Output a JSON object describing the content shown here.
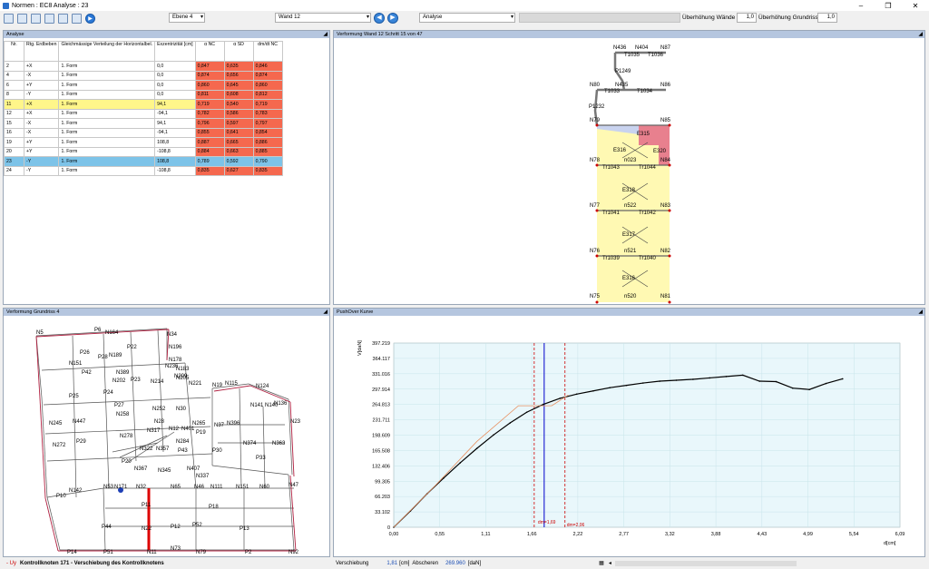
{
  "window": {
    "title": "Normen : EC8  Analyse : 23",
    "min": "–",
    "max": "❐",
    "close": "✕"
  },
  "toolbar": {
    "level_select": "Ebene 4",
    "wall_select": "Wand 12",
    "mode_select": "Analyse",
    "ueberhoehung_waende_label": "Überhöhung Wände",
    "ueberhoehung_waende_value": "1,0",
    "ueberhoehung_grundriss_label": "Überhöhung Grundriss",
    "ueberhoehung_grundriss_value": "1,0",
    "prev": "◀",
    "next": "▶"
  },
  "analysis_panel": {
    "title": "Analyse",
    "columns": [
      "Nr.",
      "Rtg. Erdbeben",
      "Gleichmässige Verteilung der Horizontalbel.",
      "Exzentrizität [cm]",
      "α NC",
      "α SD",
      "dm/dt NC"
    ],
    "rows": [
      {
        "nr": "2",
        "dir": "+X",
        "dist": "1. Form",
        "ecc": "0,0",
        "anc": "0,847",
        "asd": "0,635",
        "dm": "0,846",
        "hl": ""
      },
      {
        "nr": "4",
        "dir": "-X",
        "dist": "1. Form",
        "ecc": "0,0",
        "anc": "0,874",
        "asd": "0,656",
        "dm": "0,874",
        "hl": ""
      },
      {
        "nr": "6",
        "dir": "+Y",
        "dist": "1. Form",
        "ecc": "0,0",
        "anc": "0,860",
        "asd": "0,645",
        "dm": "0,860",
        "hl": ""
      },
      {
        "nr": "8",
        "dir": "-Y",
        "dist": "1. Form",
        "ecc": "0,0",
        "anc": "0,811",
        "asd": "0,608",
        "dm": "0,812",
        "hl": ""
      },
      {
        "nr": "11",
        "dir": "+X",
        "dist": "1. Form",
        "ecc": "94,1",
        "anc": "0,719",
        "asd": "0,540",
        "dm": "0,719",
        "hl": "yellow"
      },
      {
        "nr": "12",
        "dir": "+X",
        "dist": "1. Form",
        "ecc": "-94,1",
        "anc": "0,782",
        "asd": "0,586",
        "dm": "0,783",
        "hl": ""
      },
      {
        "nr": "15",
        "dir": "-X",
        "dist": "1. Form",
        "ecc": "94,1",
        "anc": "0,796",
        "asd": "0,597",
        "dm": "0,797",
        "hl": ""
      },
      {
        "nr": "16",
        "dir": "-X",
        "dist": "1. Form",
        "ecc": "-94,1",
        "anc": "0,855",
        "asd": "0,641",
        "dm": "0,854",
        "hl": ""
      },
      {
        "nr": "19",
        "dir": "+Y",
        "dist": "1. Form",
        "ecc": "108,8",
        "anc": "0,887",
        "asd": "0,665",
        "dm": "0,886",
        "hl": ""
      },
      {
        "nr": "20",
        "dir": "+Y",
        "dist": "1. Form",
        "ecc": "-108,8",
        "anc": "0,884",
        "asd": "0,663",
        "dm": "0,885",
        "hl": ""
      },
      {
        "nr": "23",
        "dir": "-Y",
        "dist": "1. Form",
        "ecc": "108,8",
        "anc": "0,789",
        "asd": "0,592",
        "dm": "0,790",
        "hl": "blue"
      },
      {
        "nr": "24",
        "dir": "-Y",
        "dist": "1. Form",
        "ecc": "-108,8",
        "anc": "0,835",
        "asd": "0,627",
        "dm": "0,835",
        "hl": ""
      }
    ]
  },
  "wall_panel": {
    "title": "Verformung Wand 12 Schritt 15 von 47",
    "nodes": [
      "N436",
      "N404",
      "N87",
      "T1035",
      "T1036",
      "P1249",
      "N80",
      "N435",
      "N86",
      "T1033",
      "T1034",
      "P1232",
      "N79",
      "N85",
      "E315",
      "E316",
      "E320",
      "N78",
      "n023",
      "N84",
      "Tr1043",
      "Tr1044",
      "E318",
      "N77",
      "n522",
      "N83",
      "Tr1041",
      "Tr1042",
      "E317",
      "N76",
      "n521",
      "N82",
      "Tr1039",
      "Tr1040",
      "E316",
      "N75",
      "n520",
      "N81"
    ]
  },
  "plan_panel": {
    "title": "Verformung Grundriss 4",
    "labels": [
      "N5",
      "P6",
      "N164",
      "N34",
      "P22",
      "N196",
      "P26",
      "P28",
      "N189",
      "N178",
      "N236",
      "N183",
      "N151",
      "P42",
      "N389",
      "N202",
      "N205",
      "N221",
      "P23",
      "N214",
      "N209",
      "N19",
      "N115",
      "N124",
      "P24",
      "P25",
      "P27",
      "N141",
      "N140",
      "N136",
      "N23",
      "N245",
      "N447",
      "N258",
      "N252",
      "N30",
      "N28",
      "N12",
      "N265",
      "N37",
      "N396",
      "N272",
      "P29",
      "N278",
      "N317",
      "N284",
      "N374",
      "N363",
      "N322",
      "N357",
      "P43",
      "N401",
      "P19",
      "P30",
      "P33",
      "N407",
      "P20",
      "N367",
      "N345",
      "N337",
      "N111",
      "N151",
      "N60",
      "N47",
      "P10",
      "N142",
      "N53",
      "N171",
      "N32",
      "N65",
      "N46",
      "N22",
      "P18",
      "P44",
      "P11",
      "P12",
      "P52",
      "P13",
      "P14",
      "P51",
      "N11",
      "N73",
      "N79",
      "P2",
      "N92",
      "N105",
      "N17"
    ],
    "status_prefix": "- Uy",
    "status_text": "Kontrollknoten 171 - Verschiebung des Kontrollknotens"
  },
  "curve_panel": {
    "title": "PushOver Kurve",
    "status_label": "Verschiebung",
    "status_value": "1,81",
    "status_unit": "[cm]",
    "status_label2": "Abscheren",
    "status_value2": "269.960",
    "status_unit2": "[daN]",
    "dm_label1": "dm=1,69",
    "dm_label2": "dm=2,06"
  },
  "chart_data": {
    "type": "line",
    "xlabel": "d[cm]",
    "ylabel": "V[daN]",
    "x_ticks": [
      "0,00",
      "0,55",
      "1,11",
      "1,66",
      "2,22",
      "2,77",
      "3,32",
      "3,88",
      "4,43",
      "4,99",
      "5,54",
      "6,09"
    ],
    "y_ticks": [
      "0",
      "33.102",
      "66.203",
      "99.305",
      "132.406",
      "165.508",
      "198.609",
      "231.711",
      "264.813",
      "297.914",
      "331.016",
      "364.117",
      "397.219"
    ],
    "xlim": [
      0,
      6.09
    ],
    "ylim": [
      0,
      397219
    ],
    "series": [
      {
        "color": "#000000",
        "x": [
          0,
          0.2,
          0.4,
          0.6,
          0.8,
          1.0,
          1.2,
          1.4,
          1.6,
          1.8,
          2.0,
          2.2,
          2.4,
          2.6,
          2.8,
          3.0,
          3.2,
          3.4,
          3.6,
          3.8,
          4.0,
          4.2,
          4.4,
          4.6,
          4.8,
          5.0,
          5.2,
          5.4
        ],
        "y": [
          0,
          35000,
          72000,
          106000,
          139000,
          170000,
          199000,
          225000,
          248000,
          265000,
          278000,
          287000,
          294000,
          301000,
          306000,
          311000,
          315000,
          317000,
          319000,
          322000,
          325000,
          328000,
          315000,
          314000,
          300000,
          297000,
          310000,
          320000
        ]
      },
      {
        "color": "#e89060",
        "x": [
          0,
          0.5,
          1.0,
          1.5,
          1.66,
          1.9,
          2.1
        ],
        "y": [
          0,
          90000,
          185000,
          262000,
          262000,
          262000,
          285000
        ]
      }
    ],
    "markers": [
      {
        "x": 1.69,
        "color": "#cc0000"
      },
      {
        "x": 2.06,
        "color": "#cc0000"
      },
      {
        "x": 1.81,
        "color": "#0000cc"
      }
    ]
  }
}
